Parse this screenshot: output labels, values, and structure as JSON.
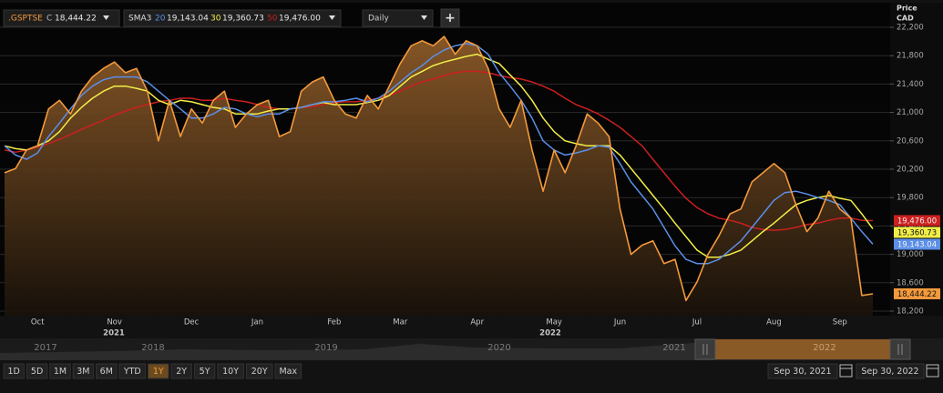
{
  "toolbar": {
    "price_code": "C",
    "study": "SMA3",
    "interval": "Daily",
    "add_button": "+"
  },
  "chart_data": {
    "type": "line",
    "y_axis_title": "Price",
    "y_axis_unit": "CAD",
    "ylim": [
      18200,
      22200
    ],
    "yticks": [
      {
        "value": 18200,
        "label": "18,200"
      },
      {
        "value": 18600,
        "label": "18,600"
      },
      {
        "value": 19000,
        "label": "19,000"
      },
      {
        "value": 19400,
        "label": "19,400"
      },
      {
        "value": 19800,
        "label": "19,800"
      },
      {
        "value": 20200,
        "label": "20,200"
      },
      {
        "value": 20600,
        "label": "20,600"
      },
      {
        "value": 21000,
        "label": "21,000"
      },
      {
        "value": 21400,
        "label": "21,400"
      },
      {
        "value": 21800,
        "label": "21,800"
      },
      {
        "value": 22200,
        "label": "22,200"
      }
    ],
    "grid": true,
    "year_labels": [
      "2021",
      "2022"
    ],
    "categories": [
      null,
      null,
      null,
      "Oct",
      null,
      null,
      null,
      null,
      null,
      null,
      "Nov",
      null,
      null,
      null,
      null,
      null,
      null,
      "Dec",
      null,
      null,
      null,
      null,
      null,
      "Jan",
      null,
      null,
      null,
      null,
      null,
      null,
      "Feb",
      null,
      null,
      null,
      null,
      null,
      "Mar",
      null,
      null,
      null,
      null,
      null,
      null,
      "Apr",
      null,
      null,
      null,
      null,
      null,
      null,
      "May",
      null,
      null,
      null,
      null,
      null,
      "Jun",
      null,
      null,
      null,
      null,
      null,
      null,
      "Jul",
      null,
      null,
      null,
      null,
      null,
      null,
      "Aug",
      null,
      null,
      null,
      null,
      null,
      "Sep",
      null,
      null,
      null
    ],
    "series": [
      {
        "name": ".GSPTSE",
        "color": "#f49a3c",
        "area": true,
        "last_label": "18,444.22",
        "values": [
          20150,
          20210,
          20470,
          20530,
          21050,
          21170,
          20980,
          21300,
          21500,
          21620,
          21710,
          21560,
          21620,
          21300,
          20600,
          21170,
          20660,
          21050,
          20850,
          21170,
          21300,
          20790,
          20980,
          21110,
          21170,
          20660,
          20730,
          21300,
          21430,
          21500,
          21170,
          20980,
          20920,
          21240,
          21050,
          21370,
          21690,
          21940,
          22010,
          21940,
          22070,
          21820,
          22010,
          21940,
          21620,
          21050,
          20790,
          21170,
          20470,
          19890,
          20470,
          20150,
          20530,
          20980,
          20850,
          20660,
          19640,
          19000,
          19130,
          19190,
          18870,
          18930,
          18350,
          18610,
          19000,
          19260,
          19570,
          19640,
          20020,
          20150,
          20280,
          20150,
          19700,
          19320,
          19510,
          19890,
          19640,
          19510,
          18420,
          18444.22
        ]
      },
      {
        "name": "20",
        "color": "#5b8fe8",
        "last_label": "19,143.04",
        "values": [
          20530,
          20400,
          20340,
          20430,
          20660,
          20850,
          21050,
          21240,
          21370,
          21460,
          21500,
          21500,
          21500,
          21430,
          21300,
          21170,
          21050,
          20920,
          20920,
          20980,
          21070,
          21050,
          20980,
          20940,
          20980,
          20980,
          21050,
          21070,
          21110,
          21150,
          21150,
          21170,
          21200,
          21150,
          21200,
          21300,
          21430,
          21560,
          21660,
          21790,
          21880,
          21940,
          21970,
          21940,
          21820,
          21560,
          21370,
          21170,
          20920,
          20600,
          20470,
          20400,
          20430,
          20470,
          20530,
          20510,
          20280,
          20020,
          19830,
          19640,
          19380,
          19120,
          18930,
          18870,
          18870,
          18930,
          19060,
          19190,
          19380,
          19570,
          19760,
          19870,
          19890,
          19850,
          19800,
          19760,
          19700,
          19510,
          19320,
          19143.04
        ]
      },
      {
        "name": "30",
        "color": "#f2ee48",
        "last_label": "19,360.73",
        "values": [
          20530,
          20490,
          20470,
          20530,
          20600,
          20730,
          20920,
          21070,
          21200,
          21300,
          21370,
          21370,
          21340,
          21300,
          21170,
          21110,
          21170,
          21150,
          21110,
          21070,
          21050,
          20980,
          20980,
          20980,
          21020,
          21050,
          21050,
          21070,
          21110,
          21140,
          21110,
          21110,
          21110,
          21140,
          21170,
          21240,
          21370,
          21500,
          21580,
          21660,
          21710,
          21750,
          21790,
          21820,
          21750,
          21690,
          21530,
          21370,
          21170,
          20920,
          20730,
          20600,
          20560,
          20530,
          20530,
          20530,
          20400,
          20210,
          20020,
          19830,
          19640,
          19440,
          19250,
          19060,
          18960,
          18960,
          19000,
          19060,
          19190,
          19320,
          19440,
          19570,
          19700,
          19760,
          19800,
          19830,
          19790,
          19760,
          19570,
          19360.73
        ]
      },
      {
        "name": "50",
        "color": "#cc1f1f",
        "last_label": "19,476.00",
        "values": [
          20470,
          20440,
          20470,
          20510,
          20560,
          20620,
          20690,
          20760,
          20830,
          20890,
          20960,
          21020,
          21070,
          21110,
          21150,
          21170,
          21200,
          21200,
          21170,
          21170,
          21200,
          21170,
          21150,
          21110,
          21070,
          21050,
          21050,
          21070,
          21080,
          21110,
          21140,
          21150,
          21150,
          21170,
          21200,
          21240,
          21300,
          21370,
          21430,
          21470,
          21520,
          21560,
          21580,
          21580,
          21560,
          21520,
          21490,
          21470,
          21430,
          21370,
          21300,
          21200,
          21110,
          21050,
          20980,
          20890,
          20790,
          20660,
          20530,
          20340,
          20150,
          19960,
          19790,
          19660,
          19570,
          19510,
          19480,
          19440,
          19380,
          19350,
          19340,
          19350,
          19380,
          19420,
          19440,
          19480,
          19510,
          19510,
          19480,
          19476.0
        ]
      }
    ]
  },
  "ui": {
    "navigator_years": [
      "2017",
      "2018",
      "2019",
      "2020",
      "2021",
      "2022"
    ],
    "range_buttons": [
      "1D",
      "5D",
      "1M",
      "3M",
      "6M",
      "YTD",
      "1Y",
      "2Y",
      "5Y",
      "10Y",
      "20Y",
      "Max"
    ],
    "active_range": 6,
    "date_from": "Sep 30, 2021",
    "date_to": "Sep 30, 2022"
  }
}
